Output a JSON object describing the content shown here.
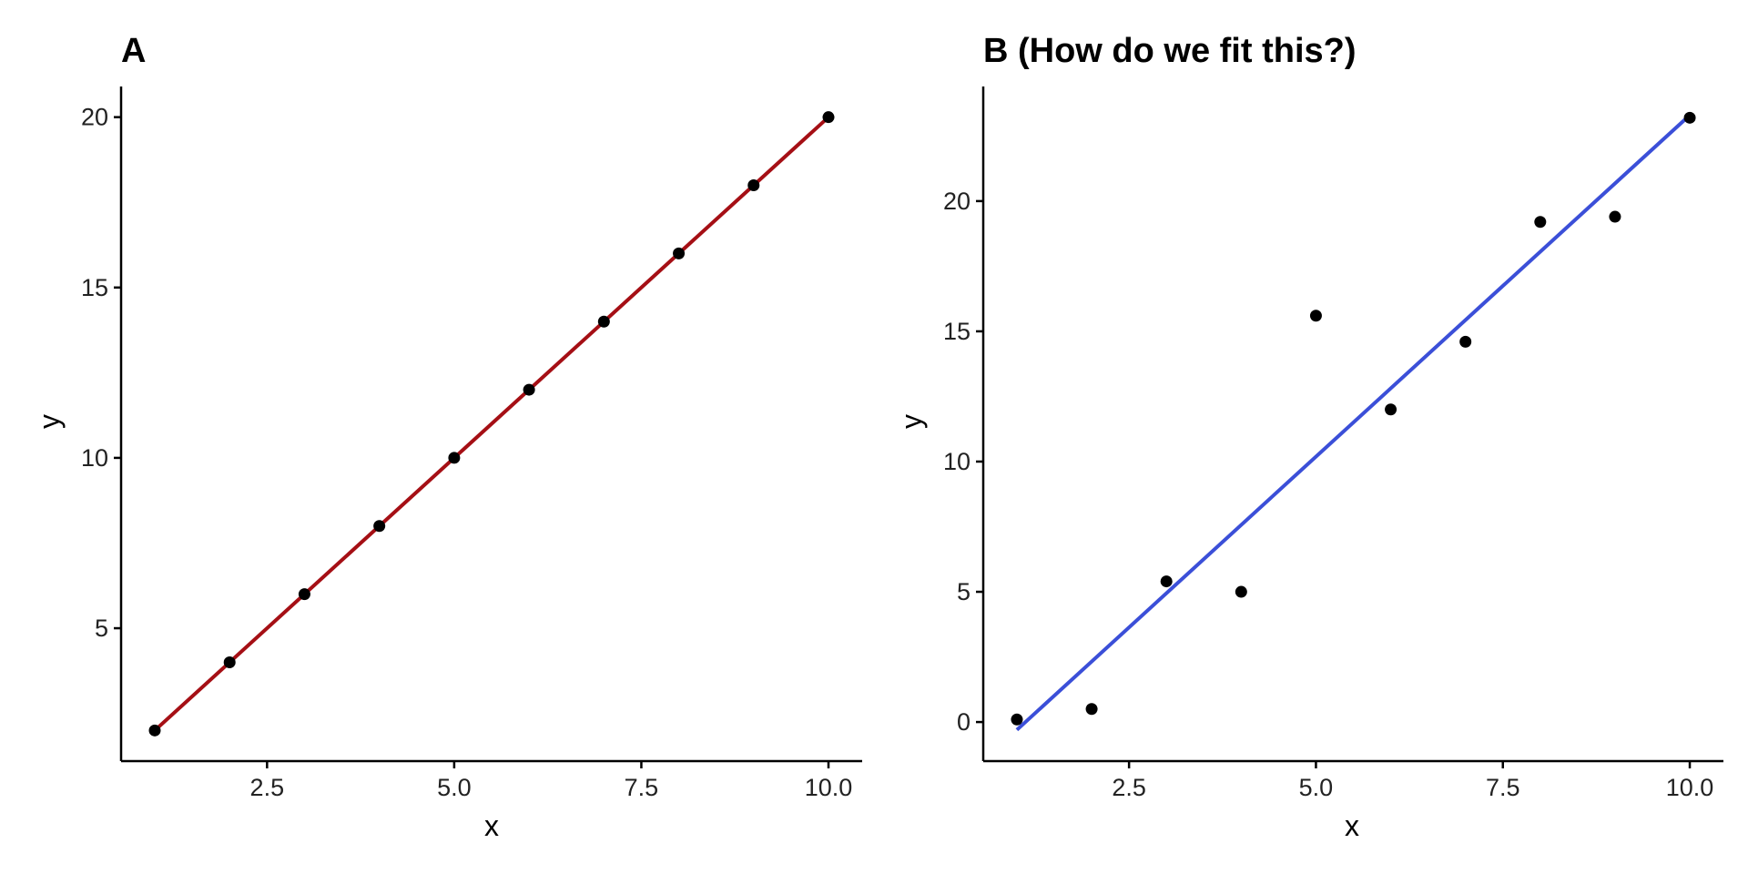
{
  "chart_data": [
    {
      "type": "scatter",
      "panel": "A",
      "title": "A",
      "xlabel": "x",
      "ylabel": "y",
      "xlim": [
        0.55,
        10.45
      ],
      "ylim": [
        1.1,
        20.9
      ],
      "xticks": [
        2.5,
        5.0,
        7.5,
        10.0
      ],
      "xtick_labels": [
        "2.5",
        "5.0",
        "7.5",
        "10.0"
      ],
      "yticks": [
        5,
        10,
        15,
        20
      ],
      "ytick_labels": [
        "5",
        "10",
        "15",
        "20"
      ],
      "grid": false,
      "points": {
        "x": [
          1,
          2,
          3,
          4,
          5,
          6,
          7,
          8,
          9,
          10
        ],
        "y": [
          2,
          4,
          6,
          8,
          10,
          12,
          14,
          16,
          18,
          20
        ]
      },
      "fit_line": {
        "x": [
          1,
          10
        ],
        "y": [
          2,
          20
        ],
        "color": "#A50F15"
      }
    },
    {
      "type": "scatter",
      "panel": "B",
      "title": "B (How do we fit this?)",
      "xlabel": "x",
      "ylabel": "y",
      "xlim": [
        0.55,
        10.45
      ],
      "ylim": [
        -1.5,
        24.4
      ],
      "xticks": [
        2.5,
        5.0,
        7.5,
        10.0
      ],
      "xtick_labels": [
        "2.5",
        "5.0",
        "7.5",
        "10.0"
      ],
      "yticks": [
        0,
        5,
        10,
        15,
        20
      ],
      "ytick_labels": [
        "0",
        "5",
        "10",
        "15",
        "20"
      ],
      "grid": false,
      "points": {
        "x": [
          1,
          2,
          3,
          4,
          5,
          6,
          7,
          8,
          9,
          10
        ],
        "y": [
          0.1,
          0.5,
          5.4,
          5.0,
          15.6,
          12.0,
          14.6,
          19.2,
          19.4,
          23.2
        ]
      },
      "fit_line": {
        "x": [
          1,
          10
        ],
        "y": [
          -0.3,
          23.3
        ],
        "color": "#3B4FD8"
      }
    }
  ]
}
